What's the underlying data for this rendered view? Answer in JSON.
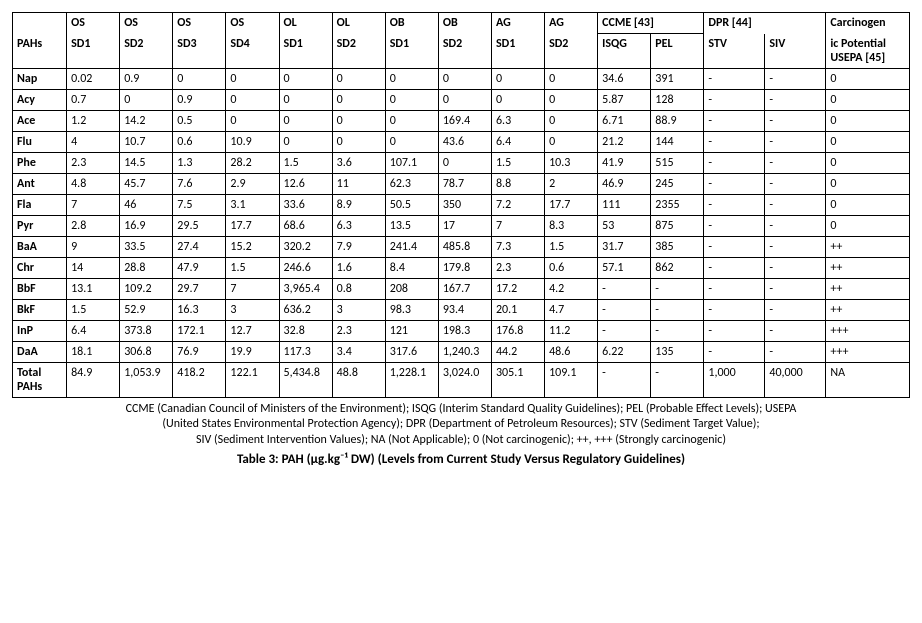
{
  "header": {
    "pahs_label": "PAHs",
    "ccme_label": "CCME [43]",
    "dpr_label": "DPR [44]",
    "carcinogen_label_top": "Carcinogen",
    "carcinogen_label_bot": "ic Potential",
    "usepa_label": "USEPA [45]",
    "cols": [
      {
        "top": "OS",
        "bot": "SD1"
      },
      {
        "top": "OS",
        "bot": "SD2"
      },
      {
        "top": "OS",
        "bot": "SD3"
      },
      {
        "top": "OS",
        "bot": "SD4"
      },
      {
        "top": "OL",
        "bot": "SD1"
      },
      {
        "top": "OL",
        "bot": "SD2"
      },
      {
        "top": "OB",
        "bot": "SD1"
      },
      {
        "top": "OB",
        "bot": "SD2"
      },
      {
        "top": "AG",
        "bot": "SD1"
      },
      {
        "top": "AG",
        "bot": "SD2"
      }
    ],
    "ccme_sub": [
      "ISQG",
      "PEL"
    ],
    "dpr_sub": [
      "STV",
      "SIV"
    ]
  },
  "rows": [
    {
      "name": "Nap",
      "v": [
        "0.02",
        "0.9",
        "0",
        "0",
        "0",
        "0",
        "0",
        "0",
        "0",
        "0",
        "34.6",
        "391",
        "-",
        "-",
        "0"
      ]
    },
    {
      "name": "Acy",
      "v": [
        "0.7",
        "0",
        "0.9",
        "0",
        "0",
        "0",
        "0",
        "0",
        "0",
        "0",
        "5.87",
        "128",
        "-",
        "-",
        "0"
      ]
    },
    {
      "name": "Ace",
      "v": [
        "1.2",
        "14.2",
        "0.5",
        "0",
        "0",
        "0",
        "0",
        "169.4",
        "6.3",
        "0",
        "6.71",
        "88.9",
        "-",
        "-",
        "0"
      ]
    },
    {
      "name": "Flu",
      "v": [
        "4",
        "10.7",
        "0.6",
        "10.9",
        "0",
        "0",
        "0",
        "43.6",
        "6.4",
        "0",
        "21.2",
        "144",
        "-",
        "-",
        "0"
      ]
    },
    {
      "name": "Phe",
      "v": [
        "2.3",
        "14.5",
        "1.3",
        "28.2",
        "1.5",
        "3.6",
        "107.1",
        "0",
        "1.5",
        "10.3",
        "41.9",
        "515",
        "-",
        "-",
        "0"
      ]
    },
    {
      "name": "Ant",
      "v": [
        "4.8",
        "45.7",
        "7.6",
        "2.9",
        "12.6",
        "11",
        "62.3",
        "78.7",
        "8.8",
        "2",
        "46.9",
        "245",
        "-",
        "-",
        "0"
      ]
    },
    {
      "name": "Fla",
      "v": [
        "7",
        "46",
        "7.5",
        "3.1",
        "33.6",
        "8.9",
        "50.5",
        "350",
        "7.2",
        "17.7",
        "111",
        "2355",
        "-",
        "-",
        "0"
      ]
    },
    {
      "name": "Pyr",
      "v": [
        "2.8",
        "16.9",
        "29.5",
        "17.7",
        "68.6",
        "6.3",
        "13.5",
        "17",
        "7",
        "8.3",
        "53",
        "875",
        "-",
        "-",
        "0"
      ]
    },
    {
      "name": "BaA",
      "v": [
        "9",
        "33.5",
        "27.4",
        "15.2",
        "320.2",
        "7.9",
        "241.4",
        "485.8",
        "7.3",
        "1.5",
        "31.7",
        "385",
        "-",
        "-",
        "++"
      ]
    },
    {
      "name": "Chr",
      "v": [
        "14",
        "28.8",
        "47.9",
        "1.5",
        "246.6",
        "1.6",
        "8.4",
        "179.8",
        "2.3",
        "0.6",
        "57.1",
        "862",
        "-",
        "-",
        "++"
      ]
    },
    {
      "name": "BbF",
      "v": [
        "13.1",
        "109.2",
        "29.7",
        "7",
        "3,965.4",
        "0.8",
        "208",
        "167.7",
        "17.2",
        "4.2",
        "-",
        "-",
        "-",
        "-",
        "++"
      ]
    },
    {
      "name": "BkF",
      "v": [
        "1.5",
        "52.9",
        "16.3",
        "3",
        "636.2",
        "3",
        "98.3",
        "93.4",
        "20.1",
        "4.7",
        "-",
        "-",
        "-",
        "-",
        "++"
      ]
    },
    {
      "name": "InP",
      "v": [
        "6.4",
        "373.8",
        "172.1",
        "12.7",
        "32.8",
        "2.3",
        "121",
        "198.3",
        "176.8",
        "11.2",
        "-",
        "-",
        "-",
        "-",
        "+++"
      ]
    },
    {
      "name": "DaA",
      "v": [
        "18.1",
        "306.8",
        "76.9",
        "19.9",
        "117.3",
        "3.4",
        "317.6",
        "1,240.3",
        "44.2",
        "48.6",
        "6.22",
        "135",
        "-",
        "-",
        "+++"
      ]
    },
    {
      "name": "Total PAHs",
      "v": [
        "84.9",
        "1,053.9",
        "418.2",
        "122.1",
        "5,434.8",
        "48.8",
        "1,228.1",
        "3,024.0",
        "305.1",
        "109.1",
        "-",
        "-",
        "1,000",
        "40,000",
        "NA"
      ]
    }
  ],
  "footnote": {
    "l1": "CCME (Canadian Council of Ministers of the Environment); ISQG (Interim Standard Quality Guidelines); PEL (Probable Effect Levels); USEPA",
    "l2": "(United States Environmental Protection Agency); DPR (Department of Petroleum Resources); STV (Sediment Target Value);",
    "l3": "SIV (Sediment Intervention Values); NA (Not Applicable); 0 (Not carcinogenic); ++, +++ (Strongly carcinogenic)"
  },
  "caption": "Table 3: PAH (µg.kg⁻¹ DW) (Levels from Current Study Versus Regulatory Guidelines)"
}
